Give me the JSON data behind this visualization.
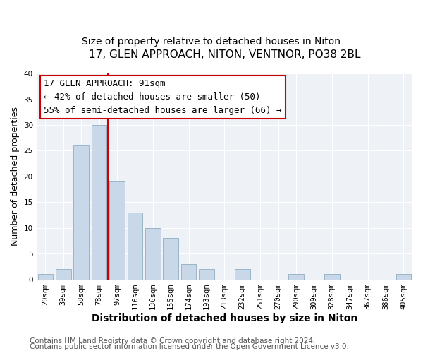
{
  "title": "17, GLEN APPROACH, NITON, VENTNOR, PO38 2BL",
  "subtitle": "Size of property relative to detached houses in Niton",
  "xlabel": "Distribution of detached houses by size in Niton",
  "ylabel": "Number of detached properties",
  "bar_labels": [
    "20sqm",
    "39sqm",
    "58sqm",
    "78sqm",
    "97sqm",
    "116sqm",
    "136sqm",
    "155sqm",
    "174sqm",
    "193sqm",
    "213sqm",
    "232sqm",
    "251sqm",
    "270sqm",
    "290sqm",
    "309sqm",
    "328sqm",
    "347sqm",
    "367sqm",
    "386sqm",
    "405sqm"
  ],
  "bar_values": [
    1,
    2,
    26,
    30,
    19,
    13,
    10,
    8,
    3,
    2,
    0,
    2,
    0,
    0,
    1,
    0,
    1,
    0,
    0,
    0,
    1
  ],
  "bar_color": "#c8d8e8",
  "bar_edgecolor": "#9ab4c8",
  "vline_color": "#cc0000",
  "ylim": [
    0,
    40
  ],
  "yticks": [
    0,
    5,
    10,
    15,
    20,
    25,
    30,
    35,
    40
  ],
  "annotation_title": "17 GLEN APPROACH: 91sqm",
  "annotation_line1": "← 42% of detached houses are smaller (50)",
  "annotation_line2": "55% of semi-detached houses are larger (66) →",
  "annotation_box_color": "#ffffff",
  "annotation_box_edgecolor": "#cc0000",
  "footer_line1": "Contains HM Land Registry data © Crown copyright and database right 2024.",
  "footer_line2": "Contains public sector information licensed under the Open Government Licence v3.0.",
  "background_color": "#ffffff",
  "plot_background_color": "#eef2f7",
  "title_fontsize": 11,
  "subtitle_fontsize": 10,
  "xlabel_fontsize": 10,
  "ylabel_fontsize": 9,
  "tick_fontsize": 7.5,
  "footer_fontsize": 7.5,
  "annotation_fontsize": 9
}
